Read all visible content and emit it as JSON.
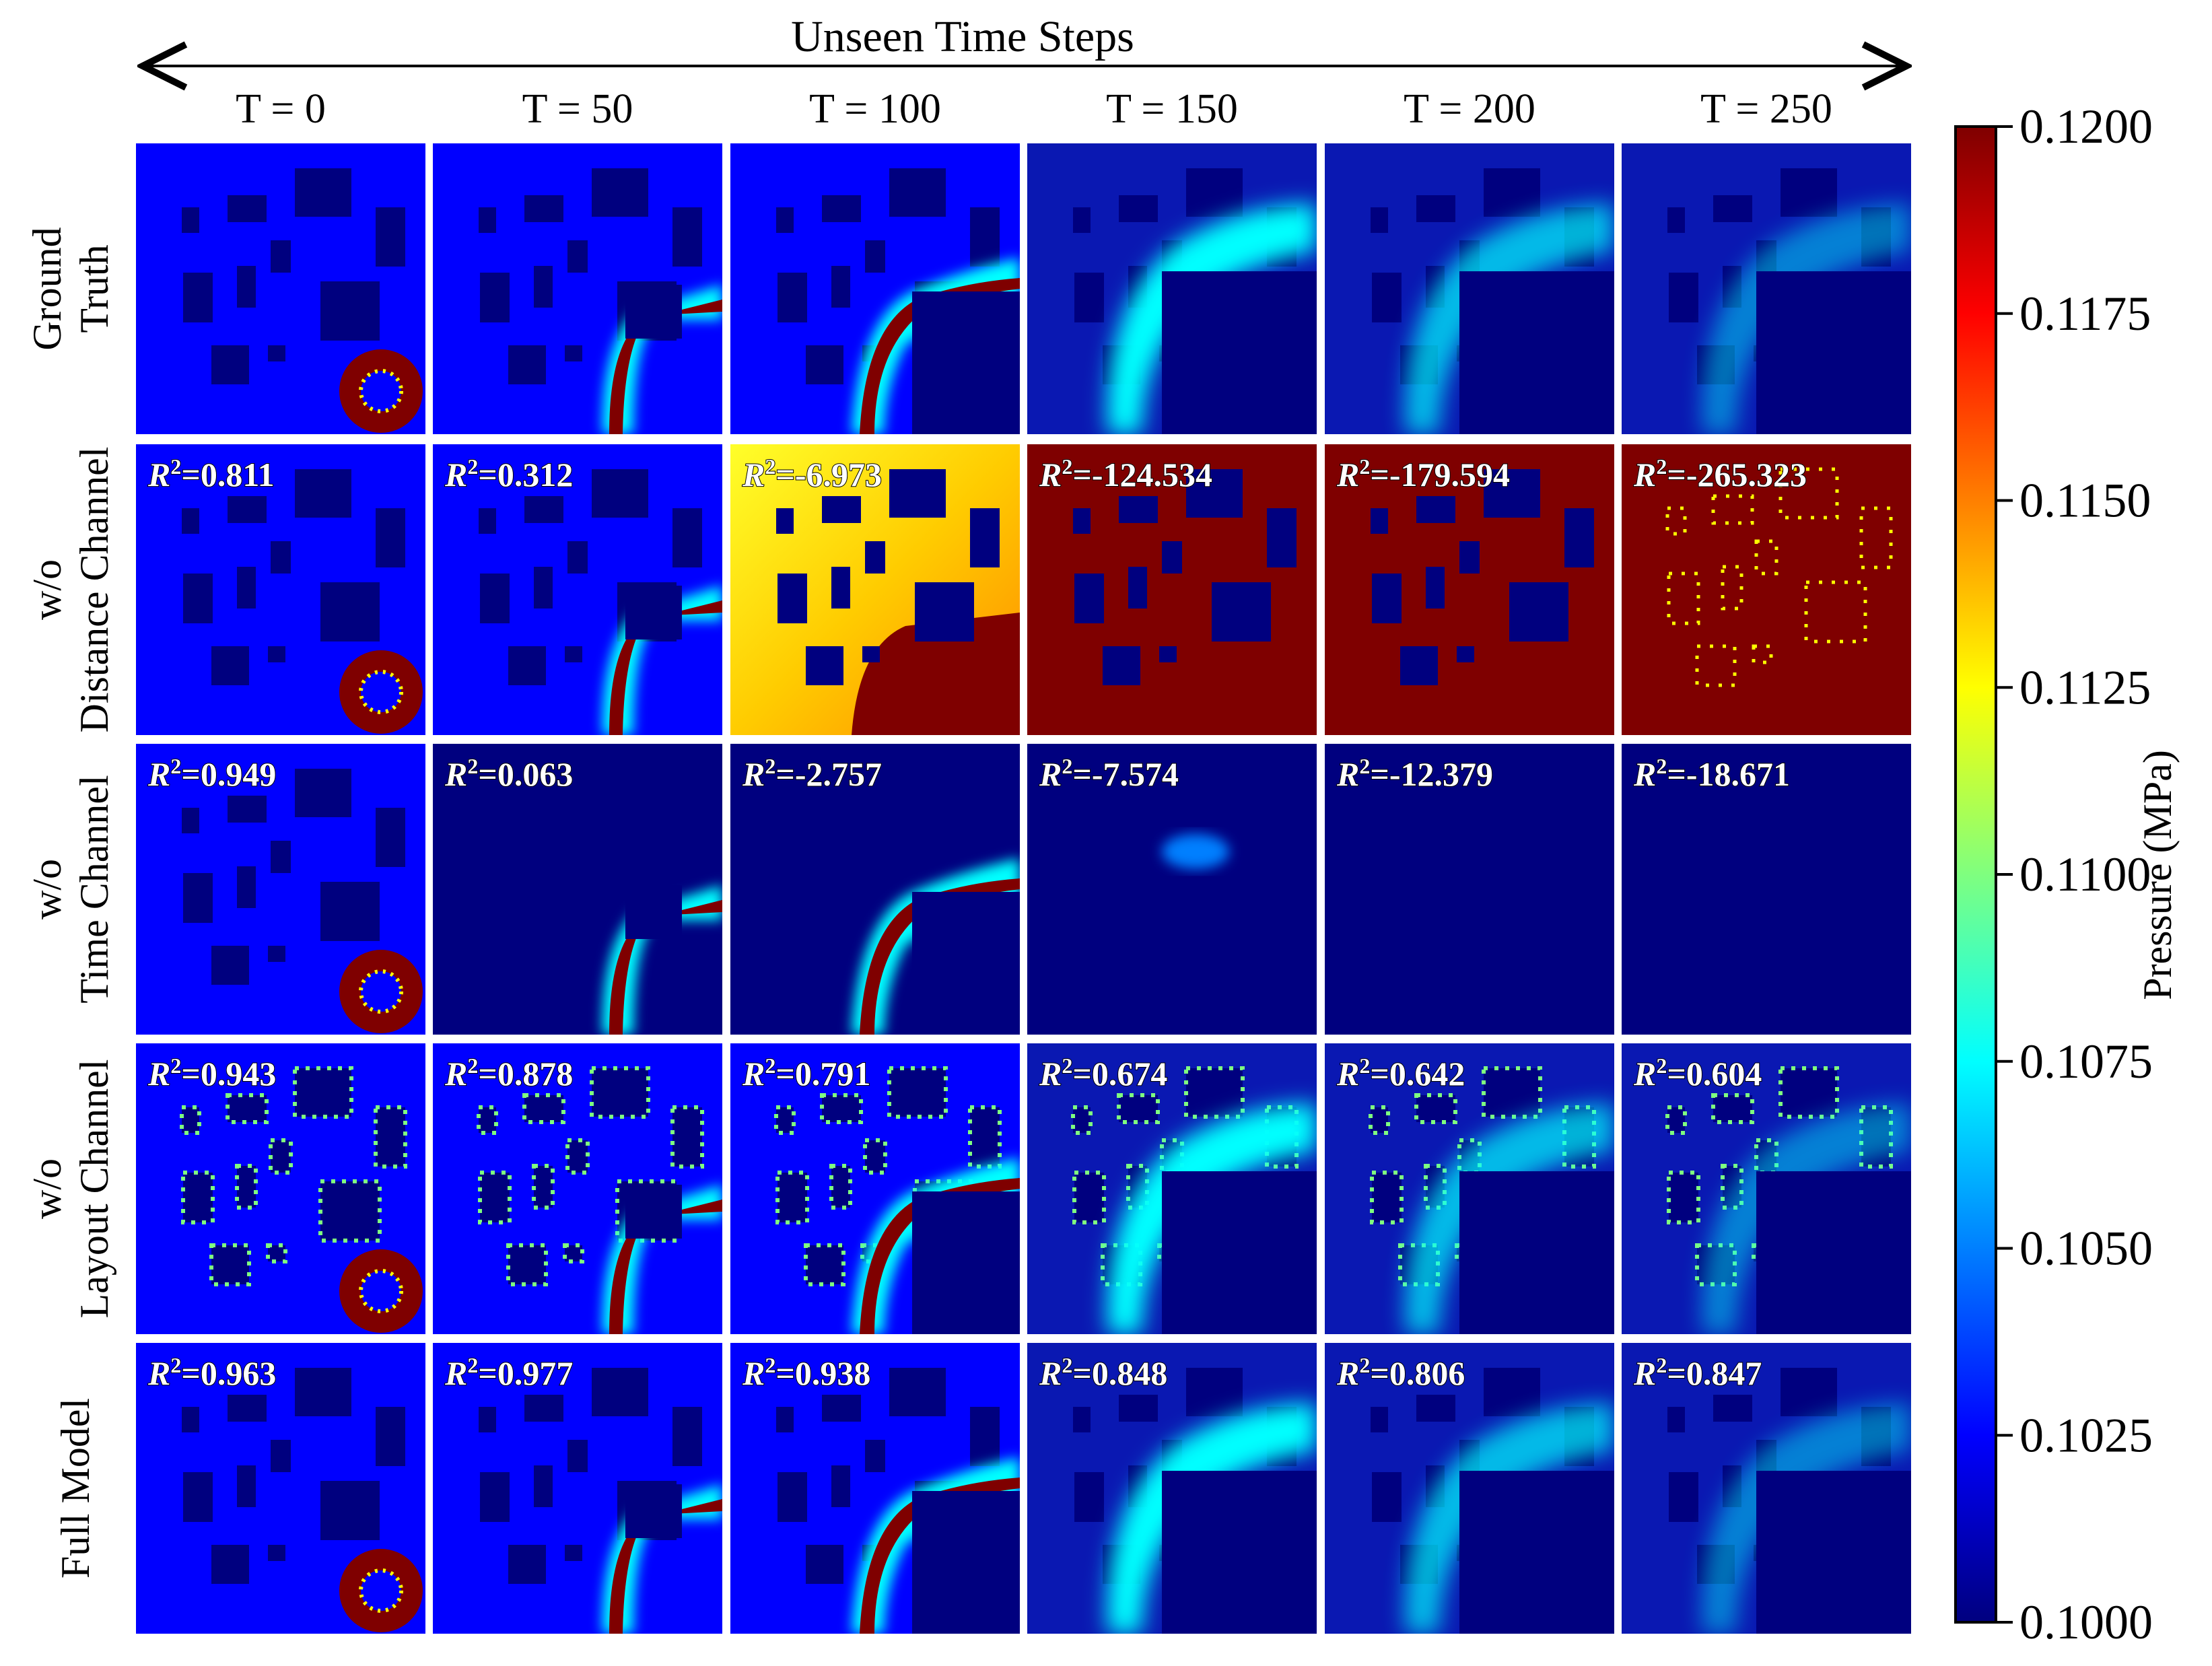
{
  "chart_data": {
    "type": "heatmap",
    "title": "Unseen Time Steps",
    "columns": [
      "T = 0",
      "T = 50",
      "T = 100",
      "T = 150",
      "T = 200",
      "T = 250"
    ],
    "time_steps": [
      0,
      50,
      100,
      150,
      200,
      250
    ],
    "rows": [
      {
        "label_lines": [
          "Ground",
          "Truth"
        ],
        "r2": null
      },
      {
        "label_lines": [
          "w/o",
          "Distance Channel"
        ],
        "r2": [
          0.811,
          0.312,
          -6.973,
          -124.534,
          -179.594,
          -265.323
        ]
      },
      {
        "label_lines": [
          "w/o",
          "Time Channel"
        ],
        "r2": [
          0.949,
          0.063,
          -2.757,
          -7.574,
          -12.379,
          -18.671
        ]
      },
      {
        "label_lines": [
          "w/o",
          "Layout Channel"
        ],
        "r2": [
          0.943,
          0.878,
          0.791,
          0.674,
          0.642,
          0.604
        ]
      },
      {
        "label_lines": [
          "Full Model"
        ],
        "r2": [
          0.963,
          0.977,
          0.938,
          0.848,
          0.806,
          0.847
        ]
      }
    ],
    "r2_labels": [
      null,
      [
        "=0.811",
        "=0.312",
        "=-6.973",
        "=-124.534",
        "=-179.594",
        "=-265.323"
      ],
      [
        "=0.949",
        "=0.063",
        "=-2.757",
        "=-7.574",
        "=-12.379",
        "=-18.671"
      ],
      [
        "=0.943",
        "=0.878",
        "=0.791",
        "=0.674",
        "=0.642",
        "=0.604"
      ],
      [
        "=0.963",
        "=0.977",
        "=0.938",
        "=0.848",
        "=0.806",
        "=0.847"
      ]
    ],
    "r2_symbol": "R",
    "r2_superscript": "2",
    "colorbar": {
      "label": "Pressure (MPa)",
      "min": 0.1,
      "max": 0.12,
      "ticks": [
        0.1,
        0.1025,
        0.105,
        0.1075,
        0.11,
        0.1125,
        0.115,
        0.1175,
        0.12
      ],
      "tick_labels": [
        "0.1000",
        "0.1025",
        "0.1050",
        "0.1075",
        "0.1100",
        "0.1125",
        "0.1150",
        "0.1175",
        "0.1200"
      ],
      "colormap": "jet"
    },
    "colormap_colors": [
      "#00007f",
      "#0000ff",
      "#007fff",
      "#00ffff",
      "#7fff7f",
      "#ffff00",
      "#ff7f00",
      "#ff0000",
      "#7f0000"
    ]
  }
}
